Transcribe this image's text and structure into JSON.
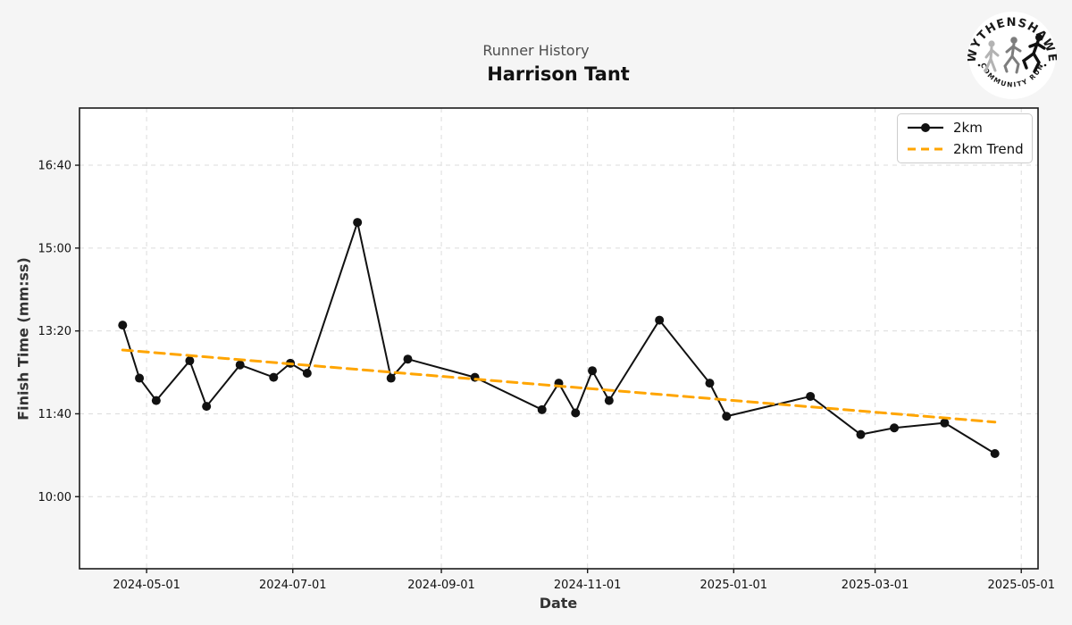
{
  "header": {
    "subtitle": "Runner History",
    "title": "Harrison Tant"
  },
  "logo": {
    "top_text": "WYTHENSHAWE",
    "bottom_text": "COMMUNITY RUN"
  },
  "colors": {
    "series_line": "#111111",
    "trend_line": "#FFA500",
    "grid": "#dcdcdc",
    "figure_bg": "#f5f5f5",
    "plot_bg": "#ffffff",
    "spine": "#1a1a1a"
  },
  "chart_data": {
    "type": "line",
    "title": "Runner History",
    "subtitle": "Harrison Tant",
    "xlabel": "Date",
    "ylabel": "Finish Time (mm:ss)",
    "grid": true,
    "xlim": [
      "2024-04-03",
      "2025-05-08"
    ],
    "ylim_seconds": [
      513,
      1069
    ],
    "x_ticks": [
      "2024-05-01",
      "2024-07-01",
      "2024-09-01",
      "2024-11-01",
      "2025-01-01",
      "2025-03-01",
      "2025-05-01"
    ],
    "y_ticks": [
      {
        "seconds": 600,
        "label": "10:00"
      },
      {
        "seconds": 700,
        "label": "11:40"
      },
      {
        "seconds": 800,
        "label": "13:20"
      },
      {
        "seconds": 900,
        "label": "15:00"
      },
      {
        "seconds": 1000,
        "label": "16:40"
      }
    ],
    "legend": {
      "position": "upper right",
      "entries": [
        {
          "label": "2km",
          "style": "solid-line-circle-marker",
          "color": "#111111"
        },
        {
          "label": "2km Trend",
          "style": "dashed-line",
          "color": "#FFA500"
        }
      ]
    },
    "series": [
      {
        "name": "2km",
        "points": [
          {
            "date": "2024-04-21",
            "time": "13:27"
          },
          {
            "date": "2024-04-28",
            "time": "12:23"
          },
          {
            "date": "2024-05-05",
            "time": "11:56"
          },
          {
            "date": "2024-05-19",
            "time": "12:44"
          },
          {
            "date": "2024-05-26",
            "time": "11:49"
          },
          {
            "date": "2024-06-09",
            "time": "12:39"
          },
          {
            "date": "2024-06-23",
            "time": "12:24"
          },
          {
            "date": "2024-06-30",
            "time": "12:41"
          },
          {
            "date": "2024-07-07",
            "time": "12:29"
          },
          {
            "date": "2024-07-28",
            "time": "15:31"
          },
          {
            "date": "2024-08-11",
            "time": "12:23"
          },
          {
            "date": "2024-08-18",
            "time": "12:46"
          },
          {
            "date": "2024-09-15",
            "time": "12:24"
          },
          {
            "date": "2024-10-13",
            "time": "11:45"
          },
          {
            "date": "2024-10-20",
            "time": "12:17"
          },
          {
            "date": "2024-10-27",
            "time": "11:41"
          },
          {
            "date": "2024-11-03",
            "time": "12:32"
          },
          {
            "date": "2024-11-10",
            "time": "11:56"
          },
          {
            "date": "2024-12-01",
            "time": "13:33"
          },
          {
            "date": "2024-12-22",
            "time": "12:17"
          },
          {
            "date": "2024-12-29",
            "time": "11:37"
          },
          {
            "date": "2025-02-02",
            "time": "12:01"
          },
          {
            "date": "2025-02-23",
            "time": "11:15"
          },
          {
            "date": "2025-03-09",
            "time": "11:23"
          },
          {
            "date": "2025-03-30",
            "time": "11:29"
          },
          {
            "date": "2025-04-20",
            "time": "10:52"
          }
        ]
      }
    ],
    "trend": {
      "name": "2km Trend",
      "color": "#FFA500",
      "start": {
        "date": "2024-04-21",
        "time": "12:57"
      },
      "end": {
        "date": "2025-04-20",
        "time": "11:30"
      }
    }
  }
}
